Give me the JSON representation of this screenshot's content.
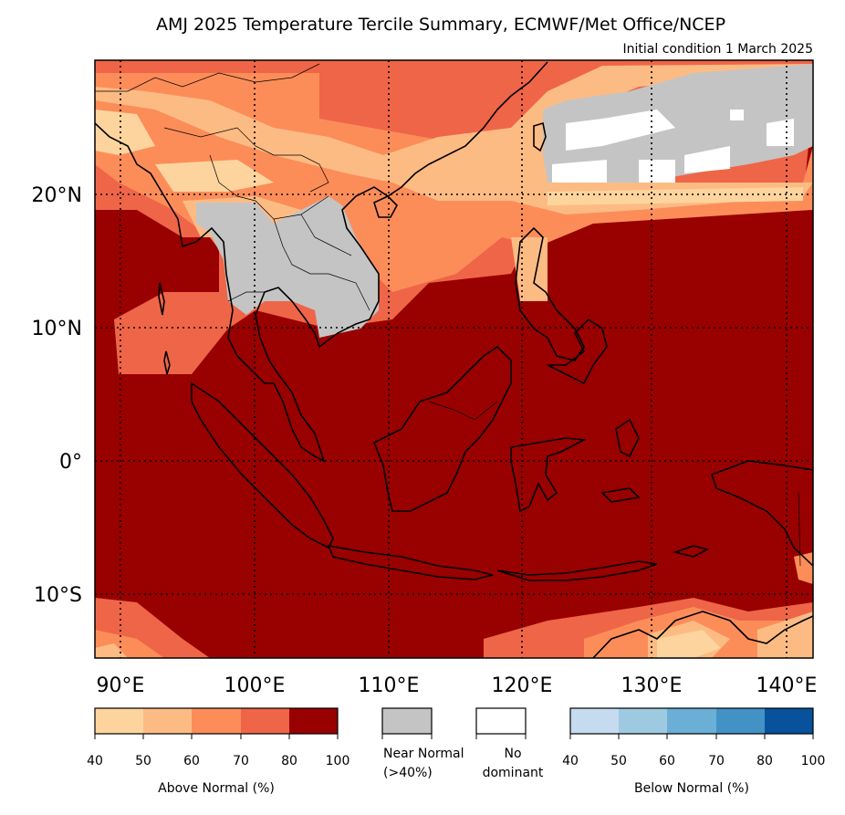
{
  "title": "AMJ 2025 Temperature Tercile Summary, ECMWF/Met Office/NCEP",
  "subtitle": "Initial condition 1 March 2025",
  "map": {
    "lon_range": [
      87,
      141
    ],
    "lat_range": [
      -15,
      30
    ],
    "lon_ticks": [
      {
        "label": "90°E",
        "lon": 90
      },
      {
        "label": "100°E",
        "lon": 100
      },
      {
        "label": "110°E",
        "lon": 110
      },
      {
        "label": "120°E",
        "lon": 120
      },
      {
        "label": "130°E",
        "lon": 130
      },
      {
        "label": "140°E",
        "lon": 140
      }
    ],
    "lat_ticks": [
      {
        "label": "20°N",
        "lat": 20
      },
      {
        "label": "10°N",
        "lat": 10
      },
      {
        "label": "0°",
        "lat": 0
      },
      {
        "label": "10°S",
        "lat": -10
      }
    ],
    "gridlines": "dotted",
    "dominant_category": "Above Normal 80-100%"
  },
  "legend": {
    "above": {
      "title": "Above Normal (%)",
      "ticks": [
        "40",
        "50",
        "60",
        "70",
        "80",
        "100"
      ],
      "colors": [
        "#fdd49e",
        "#fdbb84",
        "#fc8d59",
        "#ef6548",
        "#990000"
      ]
    },
    "near_normal": {
      "label_line1": "Near Normal",
      "label_line2": "(>40%)",
      "color": "#c4c4c4"
    },
    "no_dominant": {
      "label_line1": "No",
      "label_line2": "dominant",
      "color": "#ffffff"
    },
    "below": {
      "title": "Below Normal (%)",
      "ticks": [
        "40",
        "50",
        "60",
        "70",
        "80",
        "100"
      ],
      "colors": [
        "#c6dbef",
        "#9ecae1",
        "#6baed6",
        "#4292c6",
        "#08519c"
      ]
    }
  }
}
